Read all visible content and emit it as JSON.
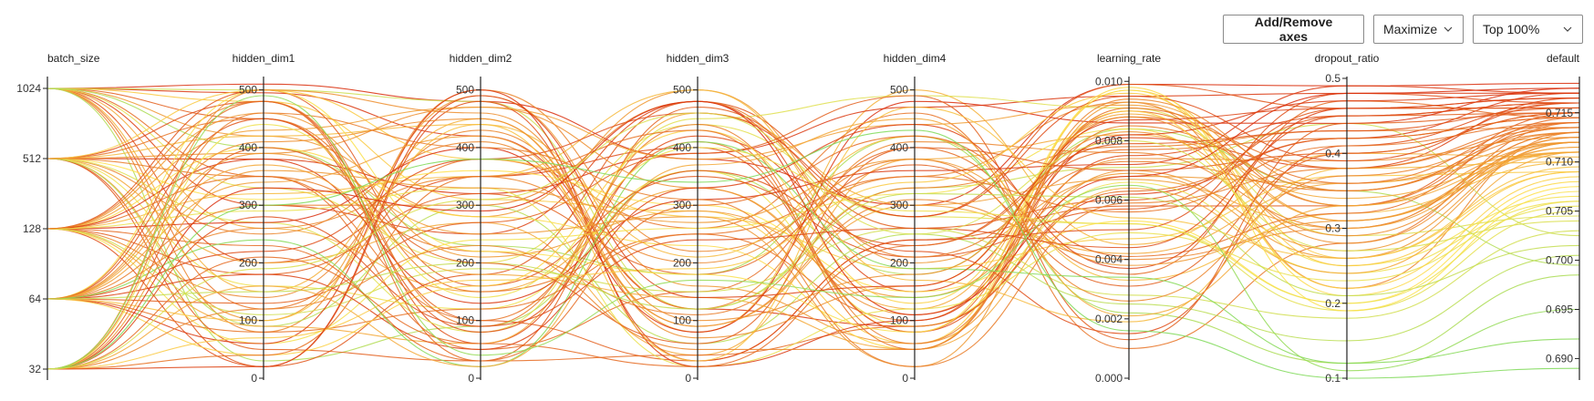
{
  "toolbar": {
    "add_remove_label": "Add/Remove axes",
    "maximize_label": "Maximize",
    "top_label": "Top 100%"
  },
  "icons": {
    "dropdown": "chevron-down-icon"
  },
  "chart_data": {
    "type": "parallel_coordinates",
    "color_scale": {
      "low": "#7ed957",
      "mid": "#ffe14a",
      "high": "#d92d0a"
    },
    "axes": [
      {
        "name": "batch_size",
        "kind": "categorical",
        "categories": [
          "32",
          "64",
          "128",
          "512",
          "1024"
        ],
        "tick_labels": [
          "32",
          "64",
          "128",
          "512",
          "1024"
        ]
      },
      {
        "name": "hidden_dim1",
        "kind": "linear",
        "range": [
          0,
          520
        ],
        "ticks": [
          0,
          100,
          200,
          300,
          400,
          500
        ],
        "tick_labels": [
          "0",
          "100",
          "200",
          "300",
          "400",
          "500"
        ]
      },
      {
        "name": "hidden_dim2",
        "kind": "linear",
        "range": [
          0,
          520
        ],
        "ticks": [
          0,
          100,
          200,
          300,
          400,
          500
        ],
        "tick_labels": [
          "0",
          "100",
          "200",
          "300",
          "400",
          "500"
        ]
      },
      {
        "name": "hidden_dim3",
        "kind": "linear",
        "range": [
          0,
          520
        ],
        "ticks": [
          0,
          100,
          200,
          300,
          400,
          500
        ],
        "tick_labels": [
          "0",
          "100",
          "200",
          "300",
          "400",
          "500"
        ]
      },
      {
        "name": "hidden_dim4",
        "kind": "linear",
        "range": [
          0,
          520
        ],
        "ticks": [
          0,
          100,
          200,
          300,
          400,
          500
        ],
        "tick_labels": [
          "0",
          "100",
          "200",
          "300",
          "400",
          "500"
        ]
      },
      {
        "name": "learning_rate",
        "kind": "linear",
        "range": [
          0.0,
          0.0101
        ],
        "ticks": [
          0.0,
          0.002,
          0.004,
          0.006,
          0.008,
          0.01
        ],
        "tick_labels": [
          "0.000",
          "0.002",
          "0.004",
          "0.006",
          "0.008",
          "0.010"
        ]
      },
      {
        "name": "dropout_ratio",
        "kind": "linear",
        "range": [
          0.1,
          0.5
        ],
        "ticks": [
          0.1,
          0.2,
          0.3,
          0.4,
          0.5
        ],
        "tick_labels": [
          "0.1",
          "0.2",
          "0.3",
          "0.4",
          "0.5"
        ]
      },
      {
        "name": "default",
        "kind": "linear",
        "range": [
          0.688,
          0.7185
        ],
        "ticks": [
          0.69,
          0.695,
          0.7,
          0.705,
          0.71,
          0.715
        ],
        "tick_labels": [
          "0.690",
          "0.695",
          "0.700",
          "0.705",
          "0.710",
          "0.715"
        ]
      }
    ],
    "runs": [
      [
        1024,
        510,
        480,
        380,
        300,
        0.0099,
        0.49,
        0.718
      ],
      [
        1024,
        495,
        420,
        120,
        90,
        0.0062,
        0.42,
        0.717
      ],
      [
        1024,
        300,
        250,
        480,
        150,
        0.0081,
        0.38,
        0.7165
      ],
      [
        1024,
        450,
        100,
        30,
        240,
        0.0058,
        0.33,
        0.715
      ],
      [
        1024,
        120,
        380,
        260,
        460,
        0.001,
        0.28,
        0.714
      ],
      [
        1024,
        200,
        350,
        400,
        80,
        0.0075,
        0.45,
        0.716
      ],
      [
        1024,
        80,
        500,
        220,
        350,
        0.0093,
        0.22,
        0.713
      ],
      [
        1024,
        350,
        50,
        150,
        400,
        0.0035,
        0.47,
        0.7145
      ],
      [
        1024,
        420,
        280,
        500,
        200,
        0.0068,
        0.36,
        0.712
      ],
      [
        1024,
        260,
        150,
        330,
        120,
        0.0089,
        0.31,
        0.711
      ],
      [
        1024,
        150,
        450,
        80,
        500,
        0.0045,
        0.4,
        0.7105
      ],
      [
        1024,
        480,
        310,
        290,
        60,
        0.0097,
        0.26,
        0.709
      ],
      [
        1024,
        330,
        200,
        440,
        280,
        0.0052,
        0.19,
        0.705
      ],
      [
        1024,
        500,
        480,
        120,
        330,
        0.0071,
        0.44,
        0.7025
      ],
      [
        1024,
        30,
        90,
        360,
        180,
        0.0084,
        0.35,
        0.6995
      ],
      [
        1024,
        400,
        230,
        180,
        420,
        0.0022,
        0.12,
        0.6985
      ],
      [
        512,
        50,
        30,
        470,
        260,
        0.006,
        0.45,
        0.715
      ],
      [
        512,
        450,
        150,
        250,
        100,
        0.0088,
        0.38,
        0.714
      ],
      [
        512,
        250,
        410,
        90,
        310,
        0.004,
        0.3,
        0.713
      ],
      [
        512,
        380,
        320,
        390,
        470,
        0.0095,
        0.48,
        0.717
      ],
      [
        512,
        100,
        490,
        160,
        60,
        0.007,
        0.27,
        0.712
      ],
      [
        512,
        480,
        60,
        420,
        220,
        0.0015,
        0.41,
        0.716
      ],
      [
        512,
        200,
        270,
        40,
        380,
        0.0082,
        0.34,
        0.711
      ],
      [
        512,
        310,
        360,
        300,
        150,
        0.0053,
        0.2,
        0.7075
      ],
      [
        512,
        20,
        180,
        480,
        280,
        0.0099,
        0.46,
        0.7155
      ],
      [
        512,
        420,
        440,
        210,
        420,
        0.0033,
        0.32,
        0.71
      ],
      [
        512,
        160,
        120,
        360,
        90,
        0.0066,
        0.24,
        0.706
      ],
      [
        512,
        350,
        220,
        110,
        330,
        0.0078,
        0.43,
        0.7135
      ],
      [
        512,
        500,
        380,
        280,
        190,
        0.0047,
        0.37,
        0.709
      ],
      [
        512,
        270,
        80,
        450,
        490,
        0.0091,
        0.29,
        0.7045
      ],
      [
        512,
        90,
        300,
        60,
        250,
        0.0025,
        0.15,
        0.7005
      ],
      [
        512,
        390,
        470,
        330,
        110,
        0.0074,
        0.39,
        0.7125
      ],
      [
        128,
        20,
        480,
        30,
        240,
        0.005,
        0.48,
        0.716
      ],
      [
        128,
        350,
        100,
        410,
        80,
        0.009,
        0.33,
        0.714
      ],
      [
        128,
        180,
        320,
        180,
        370,
        0.0031,
        0.4,
        0.715
      ],
      [
        128,
        460,
        210,
        290,
        140,
        0.0069,
        0.26,
        0.712
      ],
      [
        128,
        270,
        400,
        80,
        480,
        0.0086,
        0.44,
        0.7175
      ],
      [
        128,
        90,
        60,
        460,
        300,
        0.0042,
        0.36,
        0.711
      ],
      [
        128,
        400,
        280,
        230,
        50,
        0.0098,
        0.21,
        0.708
      ],
      [
        128,
        500,
        160,
        350,
        210,
        0.0057,
        0.46,
        0.7155
      ],
      [
        128,
        140,
        430,
        120,
        410,
        0.0076,
        0.3,
        0.713
      ],
      [
        128,
        320,
        350,
        500,
        170,
        0.0019,
        0.38,
        0.71
      ],
      [
        128,
        60,
        240,
        260,
        320,
        0.0084,
        0.25,
        0.7065
      ],
      [
        128,
        230,
        30,
        40,
        90,
        0.0063,
        0.42,
        0.7145
      ],
      [
        128,
        430,
        470,
        380,
        440,
        0.0092,
        0.31,
        0.7115
      ],
      [
        128,
        110,
        190,
        150,
        260,
        0.0028,
        0.18,
        0.703
      ],
      [
        128,
        380,
        130,
        310,
        360,
        0.0072,
        0.49,
        0.717
      ],
      [
        128,
        290,
        330,
        20,
        120,
        0.0049,
        0.23,
        0.7055
      ],
      [
        128,
        480,
        90,
        440,
        60,
        0.0085,
        0.35,
        0.7135
      ],
      [
        64,
        60,
        500,
        20,
        100,
        0.0082,
        0.47,
        0.717
      ],
      [
        64,
        480,
        30,
        300,
        420,
        0.0041,
        0.32,
        0.7145
      ],
      [
        64,
        220,
        380,
        460,
        280,
        0.0095,
        0.39,
        0.716
      ],
      [
        64,
        370,
        180,
        140,
        50,
        0.0064,
        0.24,
        0.711
      ],
      [
        64,
        130,
        270,
        390,
        490,
        0.0013,
        0.44,
        0.715
      ],
      [
        64,
        410,
        450,
        70,
        160,
        0.0088,
        0.28,
        0.7125
      ],
      [
        64,
        80,
        120,
        250,
        350,
        0.0056,
        0.41,
        0.714
      ],
      [
        64,
        300,
        300,
        480,
        210,
        0.0073,
        0.35,
        0.7135
      ],
      [
        64,
        500,
        220,
        180,
        80,
        0.0097,
        0.19,
        0.707
      ],
      [
        64,
        180,
        50,
        330,
        440,
        0.0037,
        0.46,
        0.7165
      ],
      [
        64,
        340,
        420,
        90,
        300,
        0.0067,
        0.3,
        0.7115
      ],
      [
        64,
        40,
        160,
        430,
        130,
        0.009,
        0.22,
        0.7085
      ],
      [
        64,
        260,
        350,
        200,
        380,
        0.0026,
        0.37,
        0.713
      ],
      [
        64,
        450,
        80,
        360,
        230,
        0.0079,
        0.43,
        0.7155
      ],
      [
        64,
        100,
        440,
        30,
        470,
        0.0054,
        0.26,
        0.7095
      ],
      [
        64,
        390,
        250,
        280,
        20,
        0.0093,
        0.33,
        0.712
      ],
      [
        64,
        240,
        20,
        410,
        190,
        0.0034,
        0.12,
        0.692
      ],
      [
        64,
        150,
        200,
        120,
        320,
        0.0061,
        0.21,
        0.7015
      ],
      [
        32,
        400,
        200,
        60,
        400,
        0.007,
        0.4,
        0.715
      ],
      [
        32,
        40,
        350,
        430,
        50,
        0.0091,
        0.36,
        0.714
      ],
      [
        32,
        280,
        90,
        240,
        260,
        0.0044,
        0.45,
        0.716
      ],
      [
        32,
        500,
        460,
        100,
        180,
        0.0083,
        0.29,
        0.7125
      ],
      [
        32,
        160,
        20,
        370,
        450,
        0.0021,
        0.33,
        0.711
      ],
      [
        32,
        330,
        290,
        480,
        110,
        0.0068,
        0.48,
        0.7175
      ],
      [
        32,
        70,
        170,
        190,
        340,
        0.0096,
        0.25,
        0.709
      ],
      [
        32,
        460,
        400,
        310,
        20,
        0.0059,
        0.38,
        0.7135
      ],
      [
        32,
        210,
        60,
        20,
        230,
        0.0077,
        0.42,
        0.7145
      ],
      [
        32,
        360,
        330,
        270,
        380,
        0.0038,
        0.31,
        0.712
      ],
      [
        32,
        20,
        490,
        140,
        160,
        0.0087,
        0.46,
        0.7165
      ],
      [
        32,
        440,
        140,
        400,
        290,
        0.0052,
        0.2,
        0.706
      ],
      [
        32,
        120,
        230,
        50,
        50,
        0.0094,
        0.35,
        0.713
      ],
      [
        32,
        300,
        380,
        340,
        430,
        0.0016,
        0.1,
        0.689
      ],
      [
        32,
        490,
        40,
        170,
        140,
        0.0065,
        0.11,
        0.695
      ],
      [
        32,
        190,
        310,
        460,
        250,
        0.008,
        0.27,
        0.704
      ]
    ]
  }
}
